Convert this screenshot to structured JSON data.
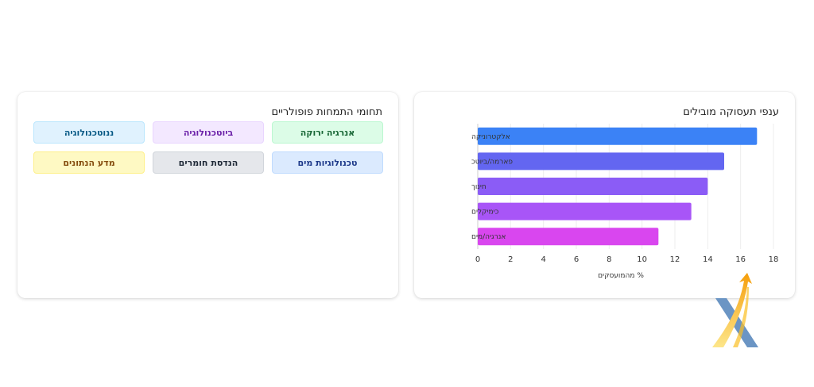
{
  "left_card": {
    "title": "תחומי התמחות פופולריים",
    "tags": [
      {
        "label": "אנרגיה ירוקה",
        "bg": "#dcfce7",
        "fg": "#166534",
        "border": "#bbf7d0"
      },
      {
        "label": "ביוטכנולוגיה",
        "bg": "#f3e8ff",
        "fg": "#6b21a8",
        "border": "#e9d5ff"
      },
      {
        "label": "ננוטכנולוגיה",
        "bg": "#e0f2fe",
        "fg": "#075985",
        "border": "#bae6fd"
      },
      {
        "label": "טכנולוגיות מים",
        "bg": "#dbeafe",
        "fg": "#1e3a8a",
        "border": "#bfdbfe"
      },
      {
        "label": "הנדסת חומרים",
        "bg": "#e5e7eb",
        "fg": "#1f2937",
        "border": "#d1d5db"
      },
      {
        "label": "מדע הנתונים",
        "bg": "#fef9c3",
        "fg": "#854d0e",
        "border": "#fef08a"
      }
    ]
  },
  "right_card": {
    "title": "ענפי תעסוקה מובילים"
  },
  "chart_data": {
    "type": "bar",
    "orientation": "horizontal",
    "categories": [
      "אלקטרוניקה",
      "פארמה/ביוטכ",
      "חינוך",
      "כימיקלים",
      "אנרגיה/מים"
    ],
    "values": [
      17,
      15,
      14,
      13,
      11
    ],
    "colors": [
      "#3b82f6",
      "#6366f1",
      "#8b5cf6",
      "#a855f7",
      "#d946ef"
    ],
    "xlabel": "% מהמועסקים",
    "xlim": [
      0,
      18
    ],
    "xticks": [
      0,
      2,
      4,
      6,
      8,
      10,
      12,
      14,
      16,
      18
    ],
    "grid": true
  }
}
